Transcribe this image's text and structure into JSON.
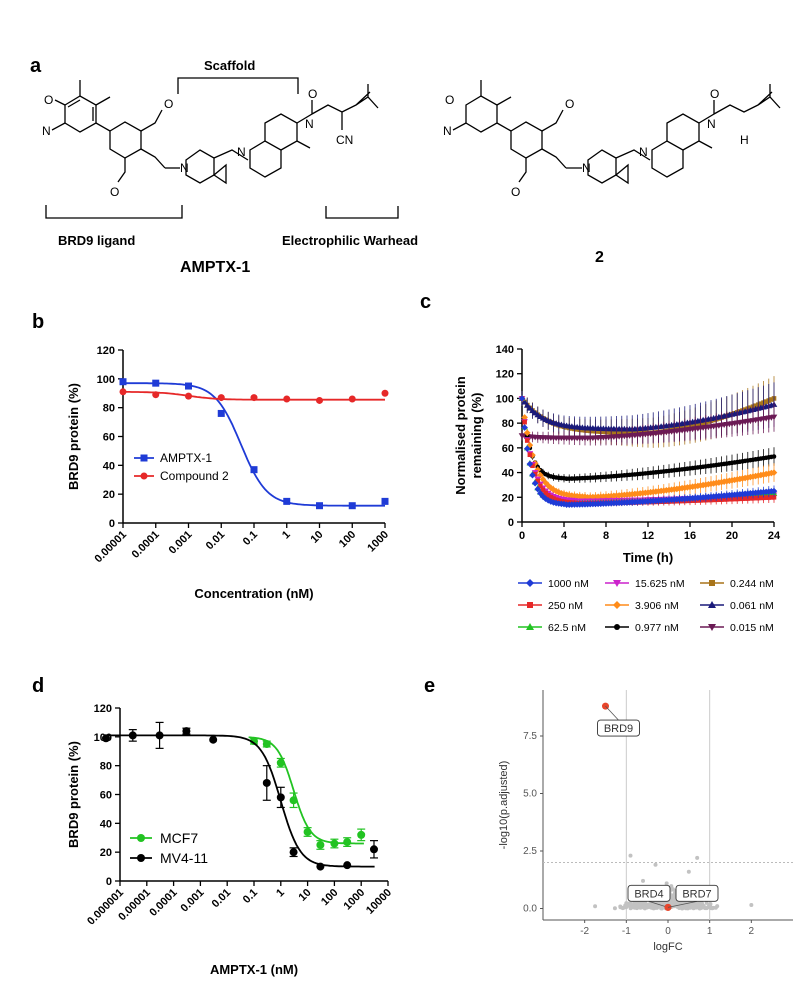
{
  "panels": {
    "a": "a",
    "b": "b",
    "c": "c",
    "d": "d",
    "e": "e"
  },
  "structures": {
    "scaffold": "Scaffold",
    "brd9_ligand": "BRD9 ligand",
    "warhead": "Electrophilic Warhead",
    "amptx_name": "AMPTX-1",
    "compound2_name": "2",
    "atoms": {
      "O": "O",
      "N": "N",
      "CN": "CN",
      "H": "H"
    }
  },
  "chart_data": [
    {
      "panel": "b",
      "type": "line",
      "xscale": "log",
      "xlabel": "Concentration (nM)",
      "ylabel": "BRD9 protein (%)",
      "ylim": [
        0,
        120
      ],
      "yticks": [
        0,
        20,
        40,
        60,
        80,
        100,
        120
      ],
      "xticks": [
        "0.00001",
        "0.0001",
        "0.001",
        "0.01",
        "0.1",
        "1",
        "10",
        "100",
        "1000"
      ],
      "legend": "bottom-left",
      "series": [
        {
          "name": "AMPTX-1",
          "color": "#1f3bd6",
          "marker": "square",
          "x": [
            1e-05,
            0.0001,
            0.001,
            0.01,
            0.1,
            1,
            10,
            100,
            1000
          ],
          "y": [
            98,
            97,
            95,
            76,
            37,
            15,
            12,
            12,
            15
          ],
          "fit": {
            "top": 97,
            "bottom": 12,
            "ec50": 0.04,
            "hill": 1.1
          }
        },
        {
          "name": "Compound 2",
          "color": "#e62828",
          "marker": "circle",
          "x": [
            1e-05,
            0.0001,
            0.001,
            0.01,
            0.1,
            1,
            10,
            100,
            1000
          ],
          "y": [
            91,
            89,
            88,
            87,
            87,
            86,
            85,
            86,
            90
          ],
          "fit": {
            "top": 91,
            "bottom": 85.5,
            "ec50": 0.001,
            "hill": 1.0
          }
        }
      ]
    },
    {
      "panel": "c",
      "type": "line",
      "xlabel": "Time (h)",
      "ylabel": "Normalised protein remaining (%)",
      "ylabel_lines": [
        "Normalised protein",
        "remaining (%)"
      ],
      "xlim": [
        0,
        24
      ],
      "ylim": [
        0,
        140
      ],
      "xticks": [
        0,
        4,
        8,
        12,
        16,
        20,
        24
      ],
      "yticks": [
        0,
        20,
        40,
        60,
        80,
        100,
        120,
        140
      ],
      "legend": "bottom",
      "series": [
        {
          "name": "1000 nM",
          "color": "#1f3bd6",
          "marker": "diamond",
          "start": 100,
          "min": 14,
          "tmin": 4,
          "end": 25,
          "err": 3
        },
        {
          "name": "250 nM",
          "color": "#e62828",
          "marker": "square",
          "start": 100,
          "min": 15,
          "tmin": 5,
          "end": 20,
          "err": 3
        },
        {
          "name": "62.5 nM",
          "color": "#22c322",
          "marker": "triangle",
          "start": 100,
          "min": 15,
          "tmin": 4,
          "end": 23,
          "err": 3
        },
        {
          "name": "15.625 nM",
          "color": "#cc22cc",
          "marker": "triangle-down",
          "start": 100,
          "min": 17,
          "tmin": 5,
          "end": 22,
          "err": 3
        },
        {
          "name": "3.906 nM",
          "color": "#ff8c1a",
          "marker": "diamond",
          "start": 100,
          "min": 20,
          "tmin": 6,
          "end": 40,
          "err": 5
        },
        {
          "name": "0.977 nM",
          "color": "#000000",
          "marker": "circle",
          "start": 100,
          "min": 35,
          "tmin": 4,
          "end": 53,
          "err": 5
        },
        {
          "name": "0.244 nM",
          "color": "#a8741a",
          "marker": "square",
          "start": 100,
          "min": 72,
          "tmin": 12,
          "end": 100,
          "err": 12
        },
        {
          "name": "0.061 nM",
          "color": "#1a1a7a",
          "marker": "triangle",
          "start": 100,
          "min": 75,
          "tmin": 10,
          "end": 95,
          "err": 12
        },
        {
          "name": "0.015 nM",
          "color": "#6b1a55",
          "marker": "triangle-down",
          "start": 70,
          "min": 68,
          "tmin": 6,
          "end": 85,
          "err": 8
        }
      ]
    },
    {
      "panel": "d",
      "type": "line",
      "xscale": "log",
      "xlabel": "AMPTX-1 (nM)",
      "ylabel": "BRD9 protein (%)",
      "ylim": [
        0,
        120
      ],
      "yticks": [
        0,
        20,
        40,
        60,
        80,
        100,
        120
      ],
      "xticks": [
        "0.000001",
        "0.00001",
        "0.0001",
        "0.001",
        "0.01",
        "0.1",
        "1",
        "10",
        "100",
        "1000",
        "10000"
      ],
      "legend": "bottom-left",
      "series": [
        {
          "name": "MCF7",
          "color": "#22c322",
          "marker": "circle",
          "x": [
            0.1,
            0.3,
            1,
            3,
            10,
            30,
            100,
            300,
            1000
          ],
          "y": [
            97,
            95,
            82,
            56,
            34,
            25,
            26,
            27,
            32
          ],
          "err": [
            2,
            2,
            3,
            5,
            3,
            3,
            3,
            3,
            4
          ],
          "fit": {
            "top": 100,
            "bottom": 26,
            "ec50": 3.0,
            "hill": 1.4
          }
        },
        {
          "name": "MV4-11",
          "color": "#000000",
          "marker": "circle",
          "x": [
            3e-07,
            3e-06,
            3e-05,
            0.0003,
            0.003,
            0.3,
            1,
            3,
            30,
            300,
            3000
          ],
          "y": [
            99,
            101,
            101,
            104,
            98,
            68,
            58,
            20,
            10,
            11,
            22
          ],
          "err": [
            0,
            4,
            9,
            2,
            0,
            12,
            7,
            3,
            0,
            0,
            6
          ],
          "fit": {
            "top": 101,
            "bottom": 10,
            "ec50": 1.0,
            "hill": 1.2
          }
        }
      ]
    },
    {
      "panel": "e",
      "type": "scatter",
      "xlabel": "logFC",
      "ylabel": "-log10(p.adjusted)",
      "xlim": [
        -3,
        3
      ],
      "ylim": [
        -0.5,
        9.5
      ],
      "xticks": [
        "-2",
        "-1",
        "0",
        "1",
        "2"
      ],
      "yticks": [
        "0.0",
        "2.5",
        "5.0",
        "7.5"
      ],
      "threshold_y": 2.0,
      "threshold_x": [
        -1,
        1
      ],
      "highlight": [
        {
          "name": "BRD9",
          "x": -1.5,
          "y": 8.8
        },
        {
          "name": "BRD4",
          "x": 0.0,
          "y": 0.05
        },
        {
          "name": "BRD7",
          "x": 0.0,
          "y": 0.05
        }
      ]
    }
  ]
}
